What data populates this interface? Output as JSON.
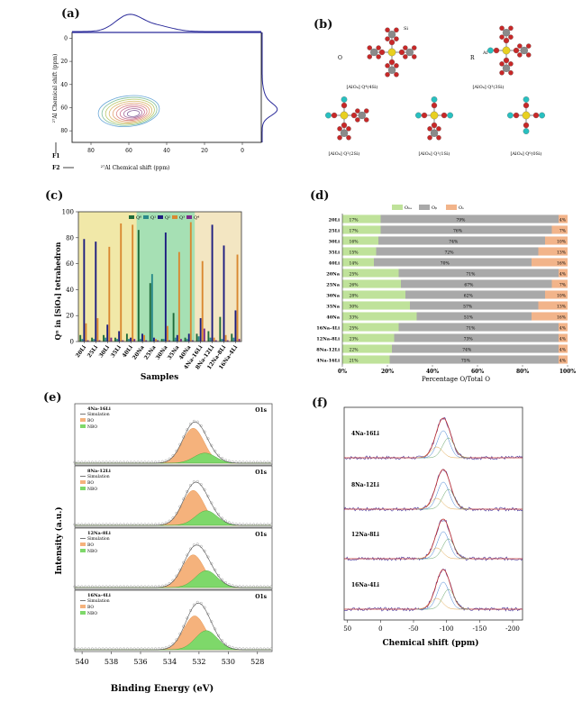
{
  "figure": {
    "panel_labels": [
      "(a)",
      "(b)",
      "(c)",
      "(d)",
      "(e)",
      "(f)"
    ]
  },
  "panel_a": {
    "y_axis_label": "²⁷Al Chemical shift (ppm)",
    "x_axis_label": "²⁷Al Chemical shift (ppm)",
    "f1_label": "F1",
    "f2_label": "F2",
    "x_ticks": [
      "80",
      "60",
      "40",
      "20",
      "0"
    ],
    "y_ticks": [
      "0",
      "20",
      "40",
      "60",
      "80"
    ]
  },
  "panel_b": {
    "structures": [
      {
        "label": "[AlO₄] Q⁴(4Si)",
        "annot": "Si"
      },
      {
        "label": "[AlO₄] Q³(3Si)",
        "annot": "Al"
      },
      {
        "label": "[AlO₄] Q²(2Si)",
        "annot": ""
      },
      {
        "label": "[AlO₄] Q¹(1Si)",
        "annot": ""
      },
      {
        "label": "[AlO₄] Q⁰(0Si)",
        "annot": ""
      }
    ],
    "side_labels": {
      "o": "O",
      "r": "R"
    }
  },
  "chart_data": [
    {
      "id": "c",
      "type": "bar",
      "title": "",
      "xlabel": "Samples",
      "ylabel": "Qⁿ in [SiO₄] tetrahedron",
      "ylim": [
        0,
        100
      ],
      "yticks": [
        "0",
        "20",
        "40",
        "60",
        "80",
        "100"
      ],
      "categories": [
        "20Li",
        "25Li",
        "30Li",
        "35Li",
        "40Li",
        "20Na",
        "25Na",
        "30Na",
        "35Na",
        "40Na",
        "4Na-16Li",
        "8Na-12Li",
        "12Na-8Li",
        "16Na-4Li"
      ],
      "series": [
        {
          "name": "Q⁰",
          "color": "#1f6b3a",
          "values": [
            5,
            3,
            5,
            3,
            6,
            86,
            45,
            2,
            22,
            3,
            6,
            8,
            19,
            6
          ]
        },
        {
          "name": "Q¹",
          "color": "#2a8a8a",
          "values": [
            2,
            2,
            3,
            2,
            2,
            2,
            52,
            2,
            3,
            2,
            4,
            3,
            2,
            3
          ]
        },
        {
          "name": "Q²",
          "color": "#1c1c80",
          "values": [
            79,
            77,
            13,
            8,
            3,
            6,
            3,
            84,
            5,
            6,
            18,
            90,
            74,
            24
          ]
        },
        {
          "name": "Q³",
          "color": "#d98830",
          "values": [
            14,
            18,
            73,
            91,
            90,
            5,
            2,
            12,
            69,
            92,
            62,
            3,
            5,
            67
          ]
        },
        {
          "name": "Q⁴",
          "color": "#7a2a8a",
          "values": [
            1,
            1,
            3,
            1,
            2,
            1,
            1,
            1,
            2,
            1,
            10,
            1,
            1,
            2
          ]
        }
      ],
      "legend": [
        "Q⁰",
        "Q¹",
        "Q²",
        "Q³",
        "Q⁴"
      ]
    },
    {
      "id": "d",
      "type": "bar",
      "orientation": "horizontal-stacked",
      "xlabel": "Percentage O/Total O",
      "xticks": [
        "0%",
        "20%",
        "40%",
        "60%",
        "80%",
        "100%"
      ],
      "legend": [
        "Oₙₑ",
        "Oᵦ",
        "Oₛ"
      ],
      "categories": [
        "20Li",
        "25Li",
        "30Li",
        "35Li",
        "40Li",
        "20Na",
        "25Na",
        "30Na",
        "35Na",
        "40Na",
        "16Na-4Li",
        "12Na-8Li",
        "8Na-12Li",
        "4Na-16Li"
      ],
      "series": [
        {
          "name": "Oₙₑ",
          "color": "#bfe29a",
          "values": [
            17,
            17,
            16,
            15,
            14,
            25,
            26,
            28,
            30,
            33,
            25,
            23,
            22,
            21
          ]
        },
        {
          "name": "Oᵦ",
          "color": "#a9a9a9",
          "values": [
            79,
            76,
            74,
            72,
            70,
            71,
            67,
            62,
            57,
            51,
            71,
            73,
            74,
            75
          ]
        },
        {
          "name": "Oₛ",
          "color": "#f2b48a",
          "values": [
            4,
            7,
            10,
            13,
            16,
            4,
            7,
            10,
            13,
            16,
            4,
            4,
            4,
            4
          ]
        }
      ],
      "value_labels": {
        "Oₙₑ": [
          "17%",
          "17%",
          "16%",
          "15%",
          "14%",
          "25%",
          "26%",
          "28%",
          "30%",
          "33%",
          "25%",
          "23%",
          "22%",
          "21%"
        ],
        "Oᵦ": [
          "79%",
          "76%",
          "74%",
          "72%",
          "70%",
          "71%",
          "67%",
          "62%",
          "57%",
          "51%",
          "71%",
          "73%",
          "74%",
          "75%"
        ],
        "Oₛ": [
          "4%",
          "7%",
          "10%",
          "13%",
          "16%",
          "4%",
          "7%",
          "10%",
          "13%",
          "16%",
          "4%",
          "4%",
          "4%",
          "4%"
        ]
      }
    },
    {
      "id": "e",
      "type": "line",
      "xlabel": "Binding Energy (eV)",
      "ylabel": "Intensity (a.u.)",
      "xticks": [
        "540",
        "538",
        "536",
        "534",
        "532",
        "530",
        "528"
      ],
      "xlim": [
        540.5,
        527
      ],
      "subplots": [
        {
          "sample": "4Na-16Li",
          "tag": "O1s",
          "legend": [
            "Simulation",
            "BO",
            "NBO"
          ],
          "BO_center": 532.4,
          "BO_height": 0.62,
          "NBO_center": 531.6,
          "NBO_height": 0.18
        },
        {
          "sample": "8Na-12Li",
          "tag": "O1s",
          "legend": [
            "Simulation",
            "BO",
            "NBO"
          ],
          "BO_center": 532.4,
          "BO_height": 0.62,
          "NBO_center": 531.5,
          "NBO_height": 0.26
        },
        {
          "sample": "12Na-8Li",
          "tag": "O1s",
          "legend": [
            "Simulation",
            "BO",
            "NBO"
          ],
          "BO_center": 532.4,
          "BO_height": 0.58,
          "NBO_center": 531.5,
          "NBO_height": 0.3
        },
        {
          "sample": "16Na-4Li",
          "tag": "O1s",
          "legend": [
            "Simulation",
            "BO",
            "NBO"
          ],
          "BO_center": 532.3,
          "BO_height": 0.6,
          "NBO_center": 531.5,
          "NBO_height": 0.34
        }
      ]
    },
    {
      "id": "f",
      "type": "line",
      "xlabel": "Chemical shift (ppm)",
      "xticks": [
        "50",
        "0",
        "-50",
        "-100",
        "-150",
        "-200"
      ],
      "xlim": [
        55,
        -215
      ],
      "peak_center": -95,
      "traces": [
        "4Na-16Li",
        "8Na-12Li",
        "12Na-8Li",
        "16Na-4Li"
      ]
    }
  ]
}
